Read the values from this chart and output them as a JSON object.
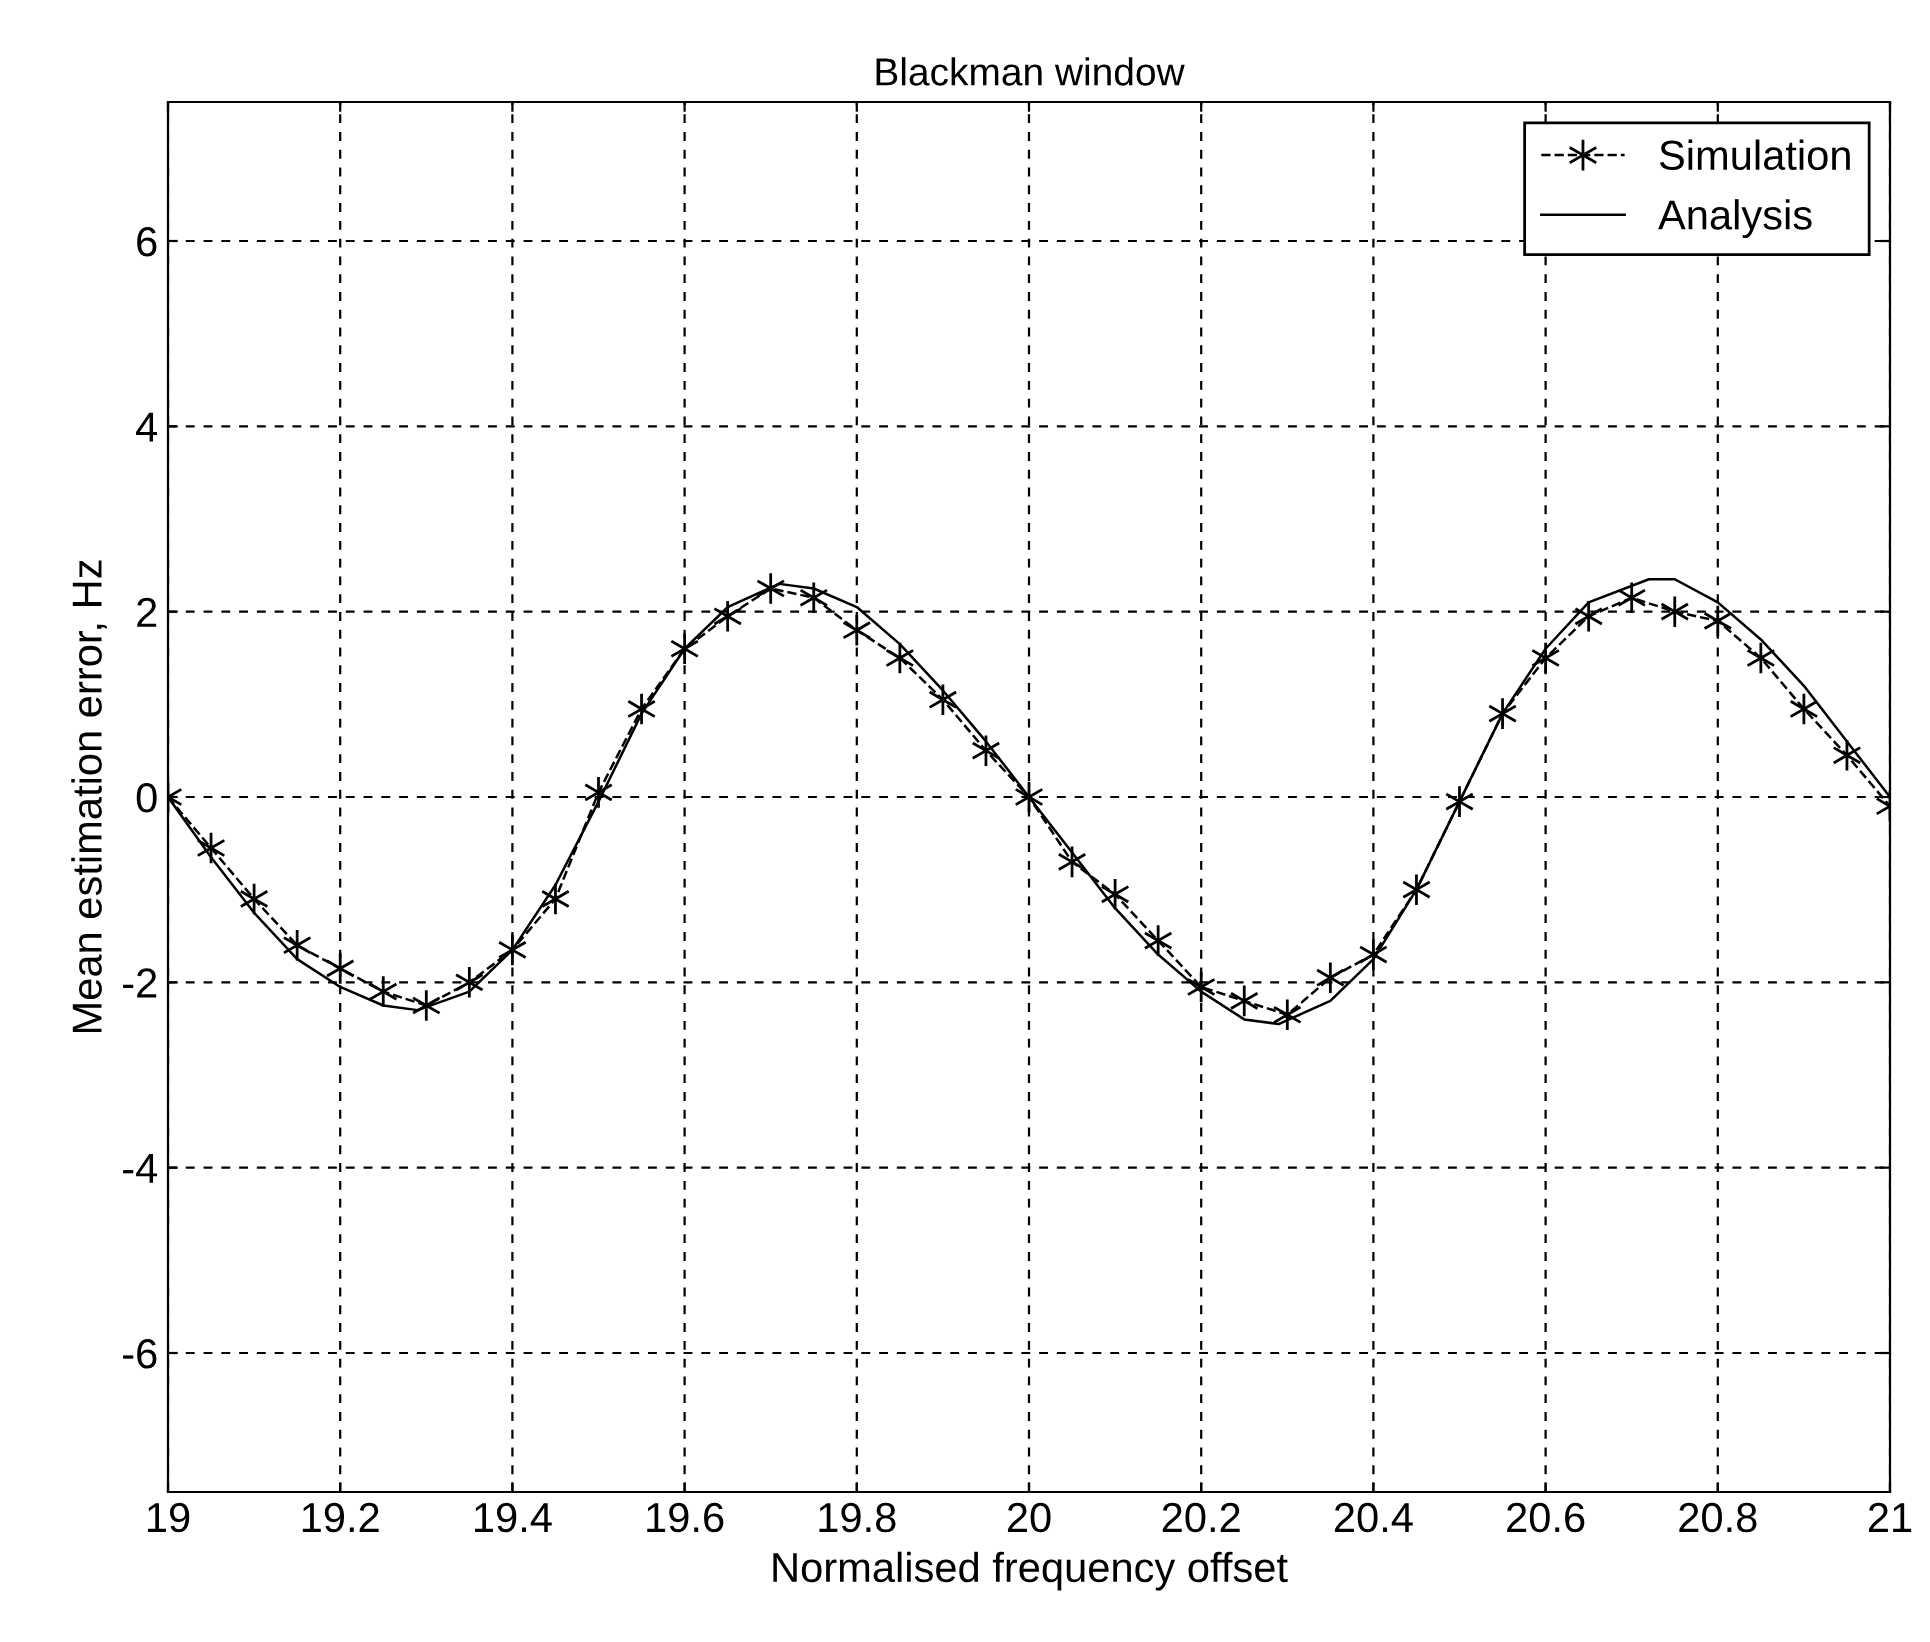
{
  "chart_data": {
    "type": "line",
    "title": "Blackman window",
    "xlabel": "Normalised frequency offset",
    "ylabel": "Mean estimation error, Hz",
    "xlim": [
      19,
      21
    ],
    "xticks": [
      19,
      19.2,
      19.4,
      19.6,
      19.8,
      20,
      20.2,
      20.4,
      20.6,
      20.8,
      21
    ],
    "ylim": [
      -7.5,
      7.5
    ],
    "yticks": [
      -6,
      -4,
      -2,
      0,
      2,
      4,
      6
    ],
    "grid": true,
    "legend": "top right",
    "series": [
      {
        "name": "Simulation",
        "color": "#000000",
        "marker": "cross",
        "line_style": "dashed",
        "x": [
          19,
          19.05,
          19.1,
          19.15,
          19.2,
          19.25,
          19.3,
          19.35,
          19.4,
          19.45,
          19.5,
          19.55,
          19.6,
          19.65,
          19.7,
          19.75,
          19.8,
          19.85,
          19.9,
          19.95,
          20,
          20.05,
          20.1,
          20.15,
          20.2,
          20.25,
          20.3,
          20.35,
          20.4,
          20.45,
          20.5,
          20.55,
          20.6,
          20.65,
          20.7,
          20.75,
          20.8,
          20.85,
          20.9,
          20.95,
          21
        ],
        "values": [
          0,
          -0.55,
          -1.1,
          -1.6,
          -1.85,
          -2.1,
          -2.25,
          -2.0,
          -1.65,
          -1.1,
          0.05,
          0.95,
          1.6,
          1.95,
          2.25,
          2.15,
          1.8,
          1.5,
          1.05,
          0.5,
          0,
          -0.7,
          -1.05,
          -1.55,
          -2.05,
          -2.2,
          -2.35,
          -1.95,
          -1.7,
          -1.0,
          -0.05,
          0.9,
          1.5,
          1.95,
          2.15,
          2.0,
          1.9,
          1.5,
          0.95,
          0.45,
          -0.1
        ]
      },
      {
        "name": "Analysis",
        "color": "#000000",
        "marker": "none",
        "line_style": "solid",
        "x": [
          19,
          19.05,
          19.1,
          19.15,
          19.2,
          19.25,
          19.29,
          19.35,
          19.4,
          19.45,
          19.5,
          19.55,
          19.6,
          19.65,
          19.71,
          19.75,
          19.8,
          19.85,
          19.9,
          19.95,
          20,
          20.05,
          20.1,
          20.15,
          20.2,
          20.25,
          20.29,
          20.35,
          20.4,
          20.45,
          20.5,
          20.55,
          20.6,
          20.65,
          20.72,
          20.75,
          20.8,
          20.85,
          20.9,
          20.95,
          21
        ],
        "values": [
          0,
          -0.65,
          -1.25,
          -1.75,
          -2.05,
          -2.25,
          -2.3,
          -2.1,
          -1.65,
          -0.95,
          -0.05,
          0.9,
          1.6,
          2.05,
          2.3,
          2.25,
          2.05,
          1.65,
          1.15,
          0.6,
          0,
          -0.6,
          -1.2,
          -1.7,
          -2.1,
          -2.4,
          -2.45,
          -2.2,
          -1.75,
          -1.0,
          -0.05,
          0.9,
          1.6,
          2.1,
          2.35,
          2.35,
          2.1,
          1.7,
          1.2,
          0.6,
          0
        ]
      }
    ]
  }
}
